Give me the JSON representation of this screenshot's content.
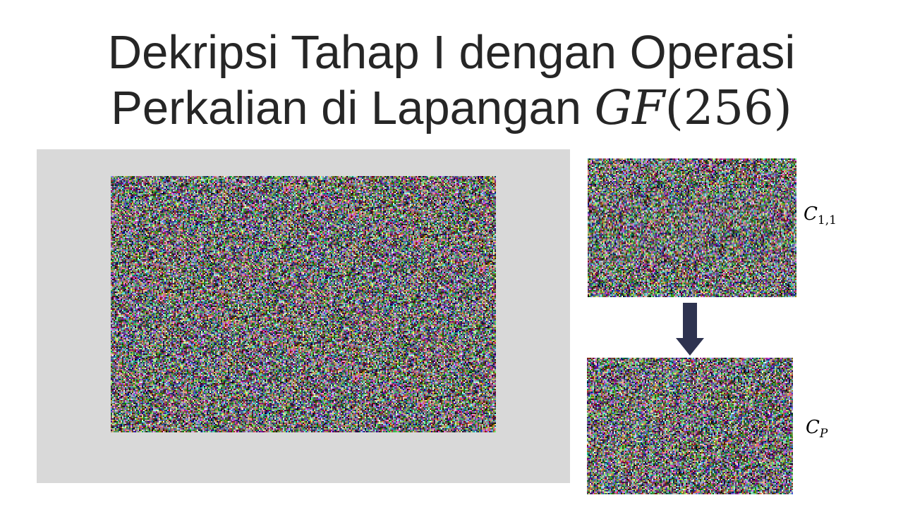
{
  "slide": {
    "title_line1": "Dekripsi Tahap I dengan Operasi",
    "title_line2_text": "Perkalian di Lapangan ",
    "title_line2_math_var": "GF",
    "title_line2_math_arg": "(256)"
  },
  "images": {
    "main": {
      "semantic": "encrypted-noise-image"
    },
    "c11": {
      "semantic": "encrypted-noise-image"
    },
    "cp": {
      "semantic": "encrypted-noise-image"
    }
  },
  "labels": {
    "c11_base": "C",
    "c11_sub": "1,1",
    "cp_base": "C",
    "cp_sub": "P"
  },
  "colors": {
    "title": "#262626",
    "panel": "#d9d9d9",
    "arrow": "#2e3350"
  },
  "icons": {
    "arrow": "arrow-down-icon"
  }
}
